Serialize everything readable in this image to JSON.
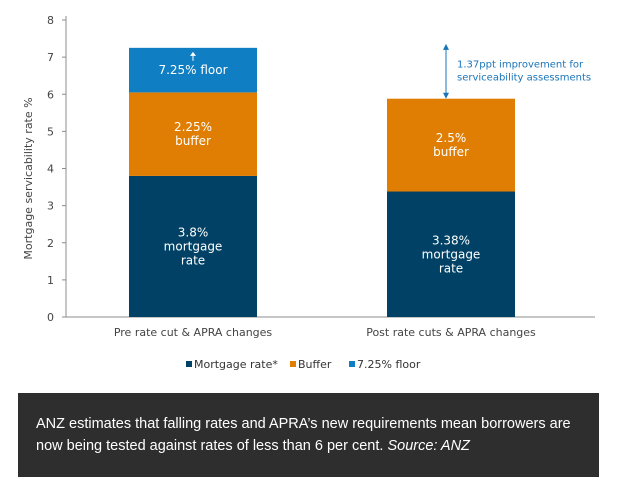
{
  "chart_data": {
    "type": "bar",
    "stacked": true,
    "categories": [
      "Pre rate cut & APRA changes",
      "Post rate cuts & APRA changes"
    ],
    "series": [
      {
        "name": "Mortgage rate*",
        "values": [
          3.8,
          3.38
        ],
        "labels": [
          "3.8%\nmortgage\nrate",
          "3.38%\nmortgage\nrate"
        ],
        "color": "#004165"
      },
      {
        "name": "Buffer",
        "values": [
          2.25,
          2.5
        ],
        "labels": [
          "2.25%\nbuffer",
          "2.5%\nbuffer"
        ],
        "color": "#e07e04"
      },
      {
        "name": "7.25% floor",
        "values": [
          1.2,
          0
        ],
        "labels": [
          "7.25% floor",
          ""
        ],
        "color": "#0f7ec2"
      }
    ],
    "ylabel": "Mortgage servicability rate %",
    "xlabel": "",
    "ylim": [
      0,
      8
    ],
    "yticks": [
      0,
      1,
      2,
      3,
      4,
      5,
      6,
      7,
      8
    ],
    "grid": false,
    "legend": "bottom",
    "annotation": {
      "text": [
        "1.37ppt improvement for",
        "serviceability assessments"
      ],
      "from_value": 5.88,
      "to_value": 7.25,
      "category_index": 1,
      "color": "#1a75b8"
    }
  },
  "caption": {
    "text": "ANZ estimates that falling rates and APRA’s new requirements mean borrowers are now being tested against rates of less than 6 per cent.",
    "source": "Source: ANZ"
  }
}
